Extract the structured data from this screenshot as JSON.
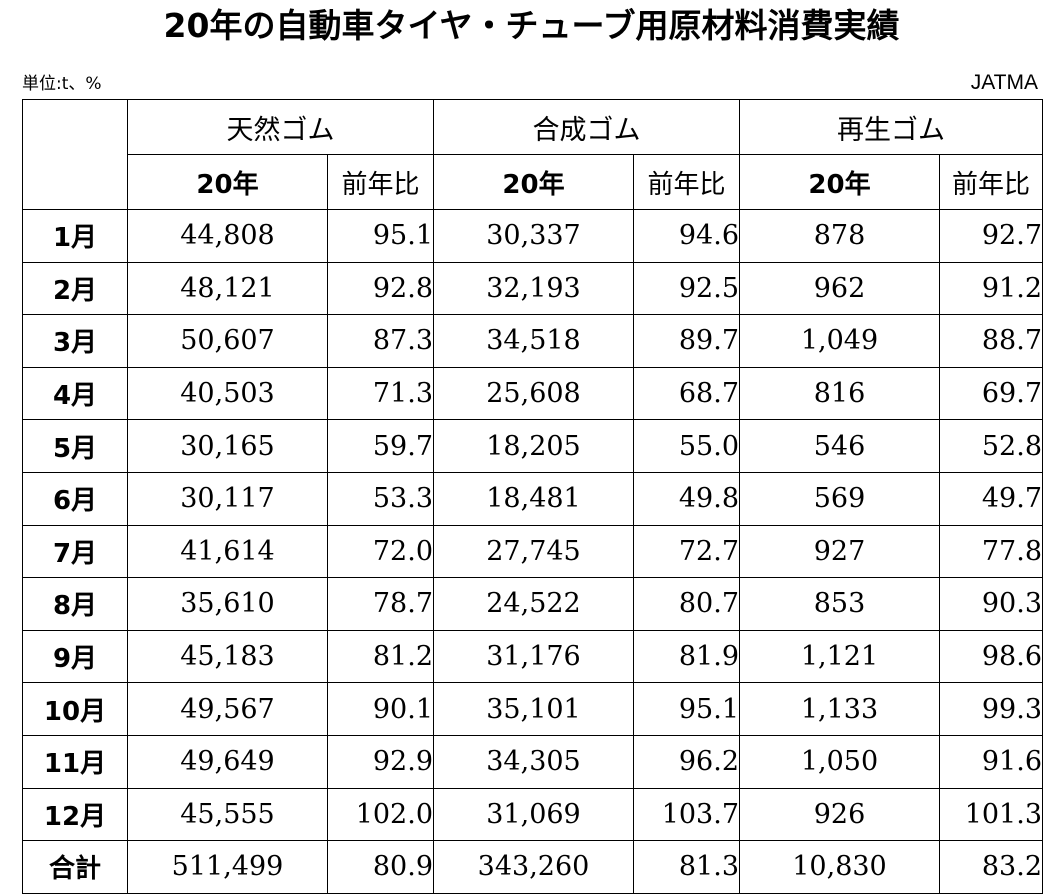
{
  "title": "20年の自動車タイヤ・チューブ用原材料消費実績",
  "unit_note": "単位:t、%",
  "source": "JATMA",
  "groups": [
    {
      "label": "天然ゴム",
      "col_year": "20年",
      "col_yoy": "前年比"
    },
    {
      "label": "合成ゴム",
      "col_year": "20年",
      "col_yoy": "前年比"
    },
    {
      "label": "再生ゴム",
      "col_year": "20年",
      "col_yoy": "前年比"
    }
  ],
  "rows": [
    {
      "month": "1月",
      "natural": "44,808",
      "natural_yoy": "95.1",
      "synthetic": "30,337",
      "synthetic_yoy": "94.6",
      "reclaimed": "878",
      "reclaimed_yoy": "92.7"
    },
    {
      "month": "2月",
      "natural": "48,121",
      "natural_yoy": "92.8",
      "synthetic": "32,193",
      "synthetic_yoy": "92.5",
      "reclaimed": "962",
      "reclaimed_yoy": "91.2"
    },
    {
      "month": "3月",
      "natural": "50,607",
      "natural_yoy": "87.3",
      "synthetic": "34,518",
      "synthetic_yoy": "89.7",
      "reclaimed": "1,049",
      "reclaimed_yoy": "88.7"
    },
    {
      "month": "4月",
      "natural": "40,503",
      "natural_yoy": "71.3",
      "synthetic": "25,608",
      "synthetic_yoy": "68.7",
      "reclaimed": "816",
      "reclaimed_yoy": "69.7"
    },
    {
      "month": "5月",
      "natural": "30,165",
      "natural_yoy": "59.7",
      "synthetic": "18,205",
      "synthetic_yoy": "55.0",
      "reclaimed": "546",
      "reclaimed_yoy": "52.8"
    },
    {
      "month": "6月",
      "natural": "30,117",
      "natural_yoy": "53.3",
      "synthetic": "18,481",
      "synthetic_yoy": "49.8",
      "reclaimed": "569",
      "reclaimed_yoy": "49.7"
    },
    {
      "month": "7月",
      "natural": "41,614",
      "natural_yoy": "72.0",
      "synthetic": "27,745",
      "synthetic_yoy": "72.7",
      "reclaimed": "927",
      "reclaimed_yoy": "77.8"
    },
    {
      "month": "8月",
      "natural": "35,610",
      "natural_yoy": "78.7",
      "synthetic": "24,522",
      "synthetic_yoy": "80.7",
      "reclaimed": "853",
      "reclaimed_yoy": "90.3"
    },
    {
      "month": "9月",
      "natural": "45,183",
      "natural_yoy": "81.2",
      "synthetic": "31,176",
      "synthetic_yoy": "81.9",
      "reclaimed": "1,121",
      "reclaimed_yoy": "98.6"
    },
    {
      "month": "10月",
      "natural": "49,567",
      "natural_yoy": "90.1",
      "synthetic": "35,101",
      "synthetic_yoy": "95.1",
      "reclaimed": "1,133",
      "reclaimed_yoy": "99.3"
    },
    {
      "month": "11月",
      "natural": "49,649",
      "natural_yoy": "92.9",
      "synthetic": "34,305",
      "synthetic_yoy": "96.2",
      "reclaimed": "1,050",
      "reclaimed_yoy": "91.6"
    },
    {
      "month": "12月",
      "natural": "45,555",
      "natural_yoy": "102.0",
      "synthetic": "31,069",
      "synthetic_yoy": "103.7",
      "reclaimed": "926",
      "reclaimed_yoy": "101.3"
    },
    {
      "month": "合計",
      "natural": "511,499",
      "natural_yoy": "80.9",
      "synthetic": "343,260",
      "synthetic_yoy": "81.3",
      "reclaimed": "10,830",
      "reclaimed_yoy": "83.2"
    }
  ]
}
